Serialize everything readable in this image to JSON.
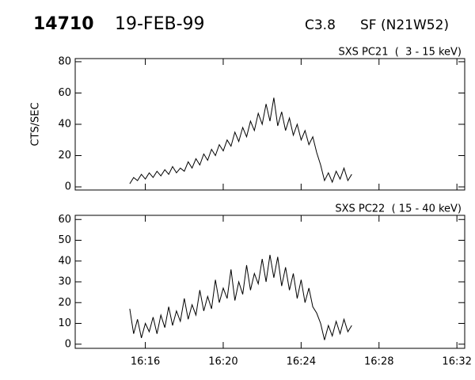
{
  "header": {
    "id": "14710",
    "date": "19-FEB-99",
    "class": "C3.8",
    "location": "SF (N21W52)"
  },
  "chart_data": [
    {
      "type": "line",
      "title": "SXS PC21  (  3 - 15 keV)",
      "ylabel": "CTS/SEC",
      "color": "#000000",
      "x": [
        975.2,
        975.4,
        975.6,
        975.8,
        976.0,
        976.2,
        976.4,
        976.6,
        976.8,
        977.0,
        977.2,
        977.4,
        977.6,
        977.8,
        978.0,
        978.2,
        978.4,
        978.6,
        978.8,
        979.0,
        979.2,
        979.4,
        979.6,
        979.8,
        980.0,
        980.2,
        980.4,
        980.6,
        980.8,
        981.0,
        981.2,
        981.4,
        981.6,
        981.8,
        982.0,
        982.2,
        982.4,
        982.6,
        982.8,
        983.0,
        983.2,
        983.4,
        983.6,
        983.8,
        984.0,
        984.2,
        984.4,
        984.6,
        984.8,
        985.0,
        985.2,
        985.4,
        985.6,
        985.8,
        986.0,
        986.2,
        986.4,
        986.6
      ],
      "values": [
        2,
        6,
        4,
        8,
        5,
        9,
        6,
        10,
        7,
        11,
        8,
        13,
        9,
        12,
        10,
        16,
        12,
        18,
        14,
        21,
        17,
        24,
        20,
        27,
        23,
        30,
        26,
        35,
        29,
        38,
        32,
        42,
        36,
        47,
        40,
        53,
        42,
        57,
        39,
        48,
        36,
        44,
        33,
        40,
        30,
        36,
        27,
        32,
        22,
        14,
        4,
        9,
        3,
        10,
        5,
        12,
        4,
        8
      ],
      "xlim": [
        972.4,
        992.4
      ],
      "xticks": [
        976,
        980,
        984,
        988,
        992
      ],
      "ylim": [
        -2,
        82
      ],
      "yticks": [
        0,
        20,
        40,
        60,
        80
      ]
    },
    {
      "type": "line",
      "title": "SXS PC22  ( 15 - 40 keV)",
      "color": "#000000",
      "x": [
        975.2,
        975.4,
        975.6,
        975.8,
        976.0,
        976.2,
        976.4,
        976.6,
        976.8,
        977.0,
        977.2,
        977.4,
        977.6,
        977.8,
        978.0,
        978.2,
        978.4,
        978.6,
        978.8,
        979.0,
        979.2,
        979.4,
        979.6,
        979.8,
        980.0,
        980.2,
        980.4,
        980.6,
        980.8,
        981.0,
        981.2,
        981.4,
        981.6,
        981.8,
        982.0,
        982.2,
        982.4,
        982.6,
        982.8,
        983.0,
        983.2,
        983.4,
        983.6,
        983.8,
        984.0,
        984.2,
        984.4,
        984.6,
        984.8,
        985.0,
        985.2,
        985.4,
        985.6,
        985.8,
        986.0,
        986.2,
        986.4,
        986.6
      ],
      "values": [
        17,
        5,
        12,
        3,
        10,
        6,
        13,
        5,
        14,
        8,
        18,
        9,
        16,
        11,
        22,
        12,
        19,
        14,
        26,
        16,
        23,
        17,
        31,
        20,
        27,
        22,
        36,
        21,
        30,
        24,
        38,
        26,
        34,
        29,
        41,
        30,
        43,
        32,
        42,
        28,
        37,
        26,
        34,
        22,
        31,
        20,
        27,
        18,
        15,
        10,
        2,
        9,
        4,
        11,
        5,
        12,
        6,
        9
      ],
      "xlim": [
        972.4,
        992.4
      ],
      "xticks": [
        {
          "value": 976,
          "label": "16:16"
        },
        {
          "value": 980,
          "label": "16:20"
        },
        {
          "value": 984,
          "label": "16:24"
        },
        {
          "value": 988,
          "label": "16:28"
        },
        {
          "value": 992,
          "label": "16:32"
        }
      ],
      "ylim": [
        -2,
        62
      ],
      "yticks": [
        0,
        10,
        20,
        30,
        40,
        50,
        60
      ]
    }
  ]
}
